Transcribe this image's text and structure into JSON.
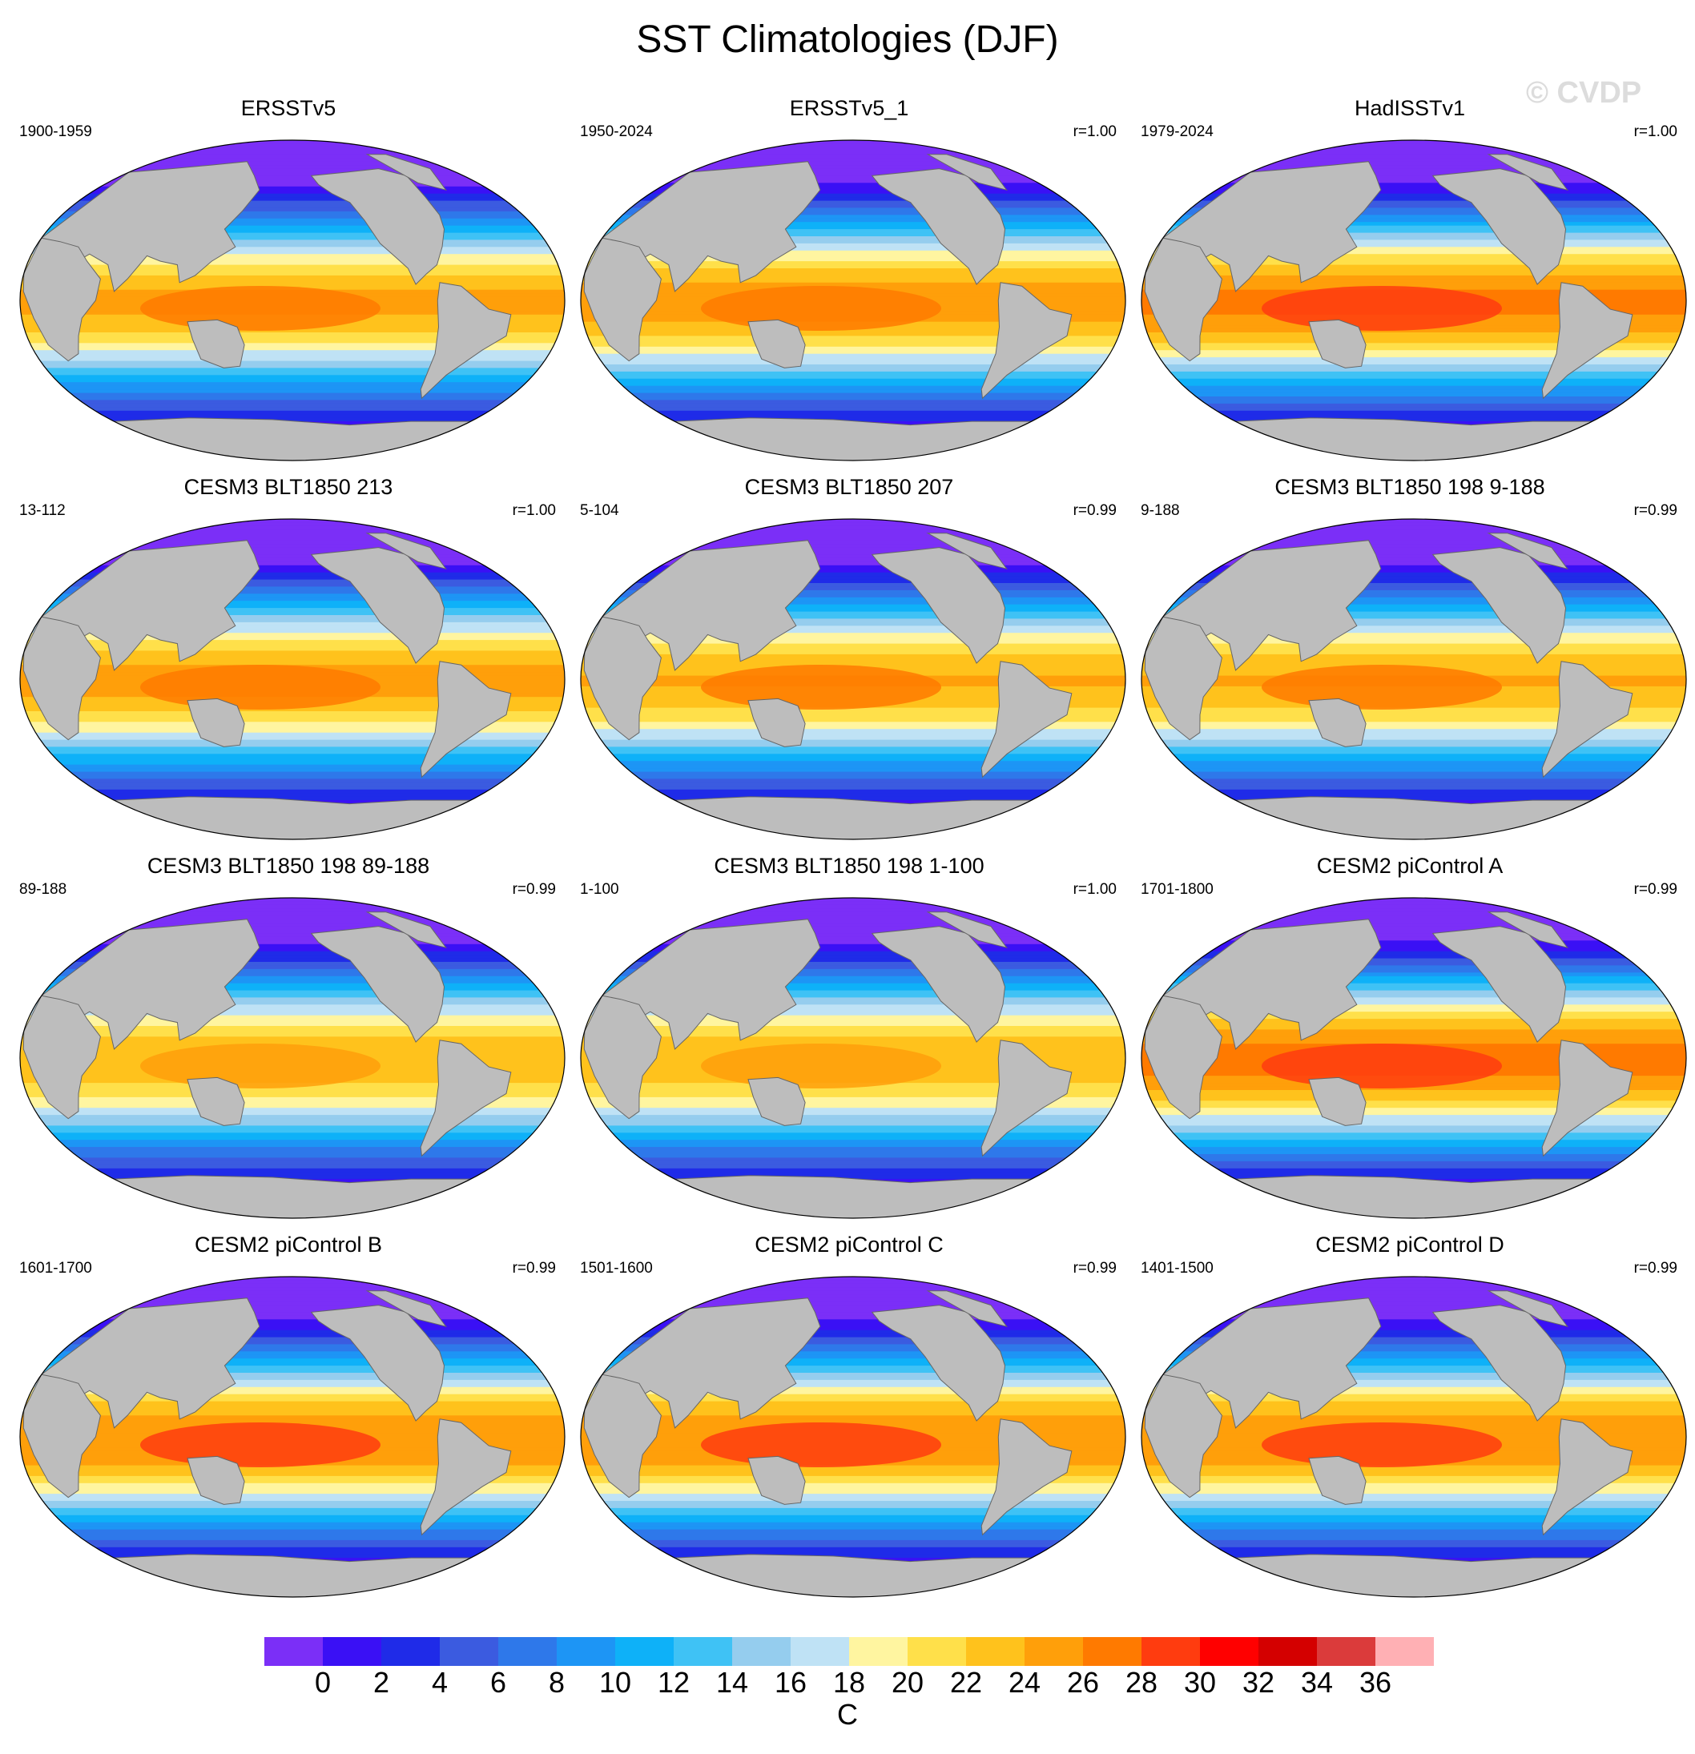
{
  "title": "SST Climatologies (DJF)",
  "watermark": "© CVDP",
  "panels": [
    {
      "title": "ERSSTv5",
      "period": "1900-1959",
      "r": "",
      "warm": 0.85
    },
    {
      "title": "ERSSTv5_1",
      "period": "1950-2024",
      "r": "r=1.00",
      "warm": 0.88
    },
    {
      "title": "HadISSTv1",
      "period": "1979-2024",
      "r": "r=1.00",
      "warm": 0.92
    },
    {
      "title": "CESM3 BLT1850 213",
      "period": "13-112",
      "r": "r=1.00",
      "warm": 0.86
    },
    {
      "title": "CESM3 BLT1850 207",
      "period": "5-104",
      "r": "r=0.99",
      "warm": 0.84
    },
    {
      "title": "CESM3 BLT1850 198 9-188",
      "period": "9-188",
      "r": "r=0.99",
      "warm": 0.84
    },
    {
      "title": "CESM3 BLT1850 198 89-188",
      "period": "89-188",
      "r": "r=0.99",
      "warm": 0.82
    },
    {
      "title": "CESM3 BLT1850 198 1-100",
      "period": "1-100",
      "r": "r=1.00",
      "warm": 0.82
    },
    {
      "title": "CESM2 piControl A",
      "period": "1701-1800",
      "r": "r=0.99",
      "warm": 0.93
    },
    {
      "title": "CESM2 piControl B",
      "period": "1601-1700",
      "r": "r=0.99",
      "warm": 0.9
    },
    {
      "title": "CESM2 piControl C",
      "period": "1501-1600",
      "r": "r=0.99",
      "warm": 0.9
    },
    {
      "title": "CESM2 piControl D",
      "period": "1401-1500",
      "r": "r=0.99",
      "warm": 0.9
    }
  ],
  "colorbar": {
    "colors": [
      "#7b2ff7",
      "#3a10f5",
      "#1f2be8",
      "#3b5be0",
      "#2e78ea",
      "#1d95f5",
      "#0eb1f8",
      "#3fc2f5",
      "#95cdee",
      "#bfe2f5",
      "#fff5a0",
      "#ffe04a",
      "#ffc21c",
      "#ff9f0a",
      "#ff7a00",
      "#ff3c0f",
      "#ff0000",
      "#d40000",
      "#db3b3b",
      "#ffb0b4"
    ],
    "ticks": [
      "0",
      "2",
      "4",
      "6",
      "8",
      "10",
      "12",
      "14",
      "16",
      "18",
      "20",
      "22",
      "24",
      "26",
      "28",
      "30",
      "32",
      "34",
      "36"
    ],
    "unit": "C"
  }
}
